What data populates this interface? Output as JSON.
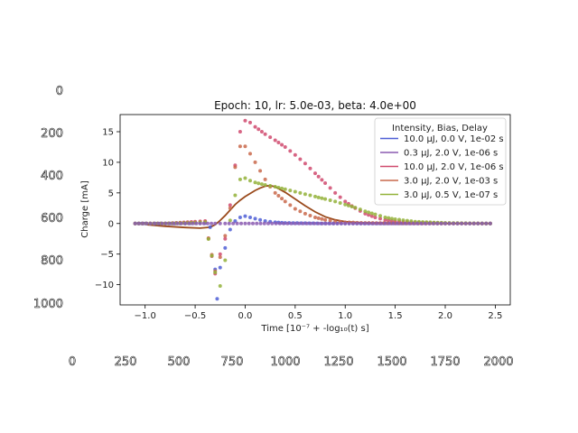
{
  "outer_axes": {
    "y_ticks": [
      "0",
      "200",
      "400",
      "600",
      "800",
      "1000"
    ],
    "x_ticks": [
      "0",
      "250",
      "500",
      "750",
      "1000",
      "1250",
      "1500",
      "1750",
      "2000"
    ]
  },
  "chart_data": {
    "type": "scatter",
    "title": "Epoch: 10, lr: 5.0e-03, beta: 4.0e+00",
    "xlabel": "Time [10⁻⁷ + -log₁₀(t) s]",
    "ylabel": "Charge [mA]",
    "xlim": [
      -1.25,
      2.65
    ],
    "ylim": [
      -13.3,
      17.8
    ],
    "x_ticks": [
      -1.0,
      -0.5,
      0.0,
      0.5,
      1.0,
      1.5,
      2.0,
      2.5
    ],
    "x_tick_labels": [
      "−1.0",
      "−0.5",
      "0.0",
      "0.5",
      "1.0",
      "1.5",
      "2.0",
      "2.5"
    ],
    "y_ticks": [
      -10,
      -5,
      0,
      5,
      10,
      15
    ],
    "y_tick_labels": [
      "−10",
      "−5",
      "0",
      "5",
      "10",
      "15"
    ],
    "grid": false,
    "legend": {
      "title": "Intensity, Bias, Delay",
      "position": "upper right",
      "entries": [
        {
          "label": "10.0 μJ, 0.0 V, 1e-02 s",
          "color": "#4f5fd6"
        },
        {
          "label": "0.3 μJ, 2.0 V, 1e-06 s",
          "color": "#8a5ab0"
        },
        {
          "label": "10.0 μJ, 2.0 V, 1e-06 s",
          "color": "#d04a6e"
        },
        {
          "label": "3.0 μJ, 2.0 V, 1e-03 s",
          "color": "#c9684b"
        },
        {
          "label": "3.0 μJ, 0.5 V, 1e-07 s",
          "color": "#93b23a"
        }
      ]
    },
    "series": [
      {
        "name": "10.0 μJ, 0.0 V, 1e-02 s",
        "color": "#4f5fd6",
        "points": [
          [
            -1.1,
            0
          ],
          [
            -1.0,
            0
          ],
          [
            -0.9,
            0
          ],
          [
            -0.8,
            0
          ],
          [
            -0.7,
            0
          ],
          [
            -0.6,
            0
          ],
          [
            -0.5,
            0.05
          ],
          [
            -0.4,
            0.05
          ],
          [
            -0.35,
            -0.6
          ],
          [
            -0.3,
            -7.5
          ],
          [
            -0.28,
            -12.3
          ],
          [
            -0.25,
            -7.2
          ],
          [
            -0.2,
            -4.0
          ],
          [
            -0.15,
            -1.0
          ],
          [
            -0.1,
            0.4
          ],
          [
            -0.05,
            1.0
          ],
          [
            0.0,
            1.2
          ],
          [
            0.05,
            1.0
          ],
          [
            0.1,
            0.8
          ],
          [
            0.15,
            0.6
          ],
          [
            0.2,
            0.4
          ],
          [
            0.3,
            0.2
          ],
          [
            0.4,
            0.1
          ],
          [
            0.6,
            0.05
          ],
          [
            0.8,
            0
          ],
          [
            1.0,
            0
          ],
          [
            1.5,
            0
          ],
          [
            2.0,
            0
          ],
          [
            2.45,
            0
          ]
        ]
      },
      {
        "name": "10.0 μJ, 2.0 V, 1e-06 s",
        "color": "#d04a6e",
        "points": [
          [
            -1.1,
            0
          ],
          [
            -0.8,
            0
          ],
          [
            -0.5,
            0.3
          ],
          [
            -0.4,
            0.4
          ],
          [
            -0.3,
            -8.2
          ],
          [
            -0.25,
            -5.0
          ],
          [
            -0.2,
            -2.5
          ],
          [
            -0.15,
            3.0
          ],
          [
            -0.1,
            9.5
          ],
          [
            -0.05,
            15.0
          ],
          [
            0.0,
            16.8
          ],
          [
            0.05,
            16.5
          ],
          [
            0.1,
            15.8
          ],
          [
            0.2,
            14.6
          ],
          [
            0.3,
            13.6
          ],
          [
            0.4,
            12.5
          ],
          [
            0.5,
            11.2
          ],
          [
            0.6,
            9.8
          ],
          [
            0.7,
            8.2
          ],
          [
            0.8,
            6.6
          ],
          [
            0.9,
            5.0
          ],
          [
            1.0,
            3.6
          ],
          [
            1.1,
            2.5
          ],
          [
            1.2,
            1.6
          ],
          [
            1.3,
            1.0
          ],
          [
            1.4,
            0.6
          ],
          [
            1.5,
            0.35
          ],
          [
            1.7,
            0.15
          ],
          [
            2.0,
            0.05
          ],
          [
            2.45,
            0
          ]
        ]
      },
      {
        "name": "3.0 μJ, 2.0 V, 1e-03 s",
        "color": "#c9684b",
        "points": [
          [
            -1.1,
            0
          ],
          [
            -0.8,
            0
          ],
          [
            -0.5,
            0.2
          ],
          [
            -0.4,
            0.3
          ],
          [
            -0.3,
            -7.8
          ],
          [
            -0.25,
            -5.5
          ],
          [
            -0.2,
            -2.0
          ],
          [
            -0.15,
            2.5
          ],
          [
            -0.1,
            9.2
          ],
          [
            -0.05,
            12.6
          ],
          [
            0.0,
            12.6
          ],
          [
            0.05,
            11.4
          ],
          [
            0.1,
            10.0
          ],
          [
            0.15,
            8.6
          ],
          [
            0.2,
            7.2
          ],
          [
            0.25,
            6.0
          ],
          [
            0.3,
            5.0
          ],
          [
            0.4,
            3.6
          ],
          [
            0.5,
            2.4
          ],
          [
            0.6,
            1.6
          ],
          [
            0.7,
            1.0
          ],
          [
            0.8,
            0.6
          ],
          [
            0.9,
            0.35
          ],
          [
            1.0,
            0.2
          ],
          [
            1.2,
            0.1
          ],
          [
            1.5,
            0.05
          ],
          [
            2.0,
            0
          ],
          [
            2.45,
            0
          ]
        ]
      },
      {
        "name": "3.0 μJ, 0.5 V, 1e-07 s",
        "color": "#93b23a",
        "points": [
          [
            -1.1,
            0
          ],
          [
            -0.8,
            0
          ],
          [
            -0.5,
            0.1
          ],
          [
            -0.4,
            0.2
          ],
          [
            -0.3,
            -8.0
          ],
          [
            -0.25,
            -10.2
          ],
          [
            -0.2,
            -6.0
          ],
          [
            -0.15,
            0.5
          ],
          [
            -0.1,
            4.6
          ],
          [
            -0.05,
            7.2
          ],
          [
            0.0,
            7.4
          ],
          [
            0.05,
            7.0
          ],
          [
            0.1,
            6.7
          ],
          [
            0.2,
            6.3
          ],
          [
            0.3,
            6.0
          ],
          [
            0.4,
            5.6
          ],
          [
            0.5,
            5.2
          ],
          [
            0.6,
            4.8
          ],
          [
            0.7,
            4.4
          ],
          [
            0.8,
            4.0
          ],
          [
            0.9,
            3.6
          ],
          [
            1.0,
            3.1
          ],
          [
            1.1,
            2.6
          ],
          [
            1.2,
            2.0
          ],
          [
            1.3,
            1.5
          ],
          [
            1.4,
            1.0
          ],
          [
            1.5,
            0.7
          ],
          [
            1.7,
            0.3
          ],
          [
            2.0,
            0.1
          ],
          [
            2.45,
            0
          ]
        ]
      },
      {
        "name": "0.3 μJ, 2.0 V, 1e-06 s",
        "color": "#8a5ab0",
        "points": [
          [
            -1.1,
            0
          ],
          [
            -0.6,
            0
          ],
          [
            -0.3,
            0
          ],
          [
            -0.2,
            0
          ],
          [
            0.0,
            0
          ],
          [
            0.5,
            0
          ],
          [
            1.0,
            0
          ],
          [
            2.0,
            0
          ],
          [
            2.45,
            0
          ]
        ]
      }
    ],
    "fit_curve": {
      "color": "#9a4a1c",
      "points": [
        [
          -0.98,
          -0.2
        ],
        [
          -0.8,
          -0.45
        ],
        [
          -0.6,
          -0.65
        ],
        [
          -0.45,
          -0.75
        ],
        [
          -0.35,
          -0.6
        ],
        [
          -0.3,
          -0.2
        ],
        [
          -0.25,
          0.5
        ],
        [
          -0.2,
          1.3
        ],
        [
          -0.15,
          2.2
        ],
        [
          -0.1,
          3.1
        ],
        [
          -0.05,
          3.8
        ],
        [
          0.0,
          4.4
        ],
        [
          0.05,
          4.9
        ],
        [
          0.1,
          5.4
        ],
        [
          0.15,
          5.8
        ],
        [
          0.2,
          6.1
        ],
        [
          0.25,
          6.2
        ],
        [
          0.3,
          6.0
        ],
        [
          0.4,
          5.1
        ],
        [
          0.5,
          4.0
        ],
        [
          0.6,
          2.9
        ],
        [
          0.7,
          1.9
        ],
        [
          0.8,
          1.1
        ],
        [
          0.9,
          0.6
        ],
        [
          1.0,
          0.3
        ],
        [
          1.2,
          0.1
        ],
        [
          1.5,
          0.03
        ],
        [
          2.0,
          0
        ],
        [
          2.45,
          0
        ]
      ]
    }
  }
}
